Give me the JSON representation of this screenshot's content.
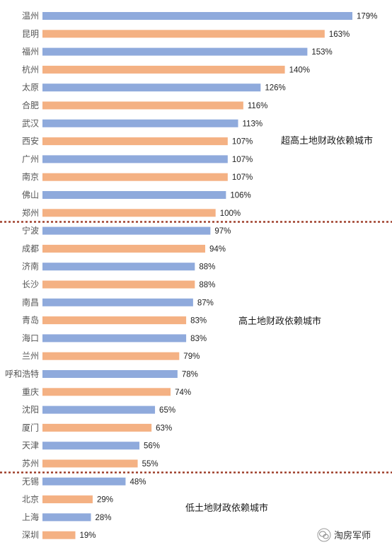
{
  "chart_data": {
    "type": "bar",
    "orientation": "horizontal",
    "categories": [
      "温州",
      "昆明",
      "福州",
      "杭州",
      "太原",
      "合肥",
      "武汉",
      "西安",
      "广州",
      "南京",
      "佛山",
      "郑州",
      "宁波",
      "成都",
      "济南",
      "长沙",
      "南昌",
      "青岛",
      "海口",
      "兰州",
      "呼和浩特",
      "重庆",
      "沈阳",
      "厦门",
      "天津",
      "苏州",
      "无锡",
      "北京",
      "上海",
      "深圳"
    ],
    "values": [
      179,
      163,
      153,
      140,
      126,
      116,
      113,
      107,
      107,
      107,
      106,
      100,
      97,
      94,
      88,
      88,
      87,
      83,
      83,
      79,
      78,
      74,
      65,
      63,
      56,
      55,
      48,
      29,
      28,
      19
    ],
    "value_labels": [
      "179%",
      "163%",
      "153%",
      "140%",
      "126%",
      "116%",
      "113%",
      "107%",
      "107%",
      "107%",
      "106%",
      "100%",
      "97%",
      "94%",
      "88%",
      "88%",
      "87%",
      "83%",
      "83%",
      "79%",
      "78%",
      "74%",
      "65%",
      "63%",
      "56%",
      "55%",
      "48%",
      "29%",
      "28%",
      "19%"
    ],
    "bar_colors": [
      "blue",
      "orange",
      "blue",
      "orange",
      "blue",
      "orange",
      "blue",
      "orange",
      "blue",
      "orange",
      "blue",
      "orange",
      "blue",
      "orange",
      "blue",
      "orange",
      "blue",
      "orange",
      "blue",
      "orange",
      "blue",
      "orange",
      "blue",
      "orange",
      "blue",
      "orange",
      "blue",
      "orange",
      "blue",
      "orange"
    ],
    "colors": {
      "blue": "#8faadc",
      "orange": "#f4b183",
      "divider": "#a0412d"
    },
    "xlim": [
      0,
      180
    ],
    "grid": false,
    "groups": [
      {
        "label": "超高土地财政依赖城市",
        "from": 0,
        "to": 11
      },
      {
        "label": "高土地财政依赖城市",
        "from": 12,
        "to": 25
      },
      {
        "label": "低土地财政依赖城市",
        "from": 26,
        "to": 29
      }
    ]
  },
  "watermark": {
    "text": "淘房军师",
    "icon": "wechat-logo-icon"
  }
}
